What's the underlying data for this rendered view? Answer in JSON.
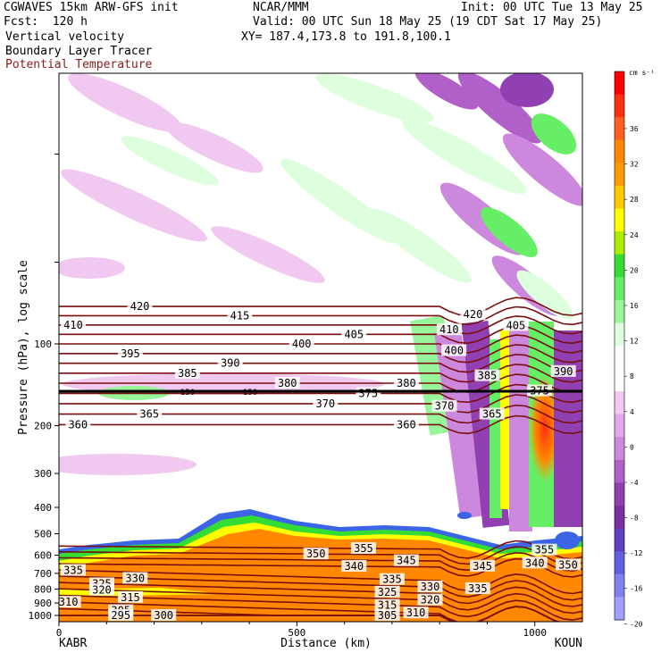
{
  "header": {
    "model": "CGWAVES 15km ARW-GFS init",
    "fcst": "Fcst:  120 h",
    "org": "NCAR/MMM",
    "init": "Init: 00 UTC Tue 13 May 25",
    "valid": "Valid: 00 UTC Sun 18 May 25 (19 CDT Sat 17 May 25)",
    "xy": "XY= 187.4,173.8 to 191.8,100.1",
    "field1": "Vertical velocity",
    "field2": "Boundary Layer Tracer",
    "field3": "Potential Temperature",
    "field3_color": "#8b1a1a"
  },
  "chart_data": {
    "type": "heatmap",
    "ylabel": "Pressure (hPa), log scale",
    "xlabel": "Distance (km)",
    "y_scale": "log",
    "yticks": [
      100,
      200,
      300,
      400,
      500,
      600,
      700,
      800,
      900,
      1000
    ],
    "xticks": [
      0,
      500,
      1000
    ],
    "x_range": [
      0,
      1100
    ],
    "left_station": "KABR",
    "right_station": "KOUN",
    "colorbar": {
      "unit": "cm s⁻¹",
      "labels": [
        36,
        32,
        28,
        24,
        20,
        16,
        12,
        8,
        4,
        0,
        -4,
        -8,
        -12,
        -16,
        -20
      ],
      "colors": [
        "#ff0000",
        "#ff3010",
        "#ff6020",
        "#ff8800",
        "#ff9a00",
        "#ffc800",
        "#ffff00",
        "#aaee00",
        "#33dd33",
        "#66ee66",
        "#99f599",
        "#ddffdd",
        "#ffffff",
        "#ffffff",
        "#f0c8f0",
        "#e0a8e8",
        "#cc88dd",
        "#b060c8",
        "#9040b0",
        "#7a30a0",
        "#6040c0",
        "#6060e0",
        "#8080f0",
        "#a0a0ff"
      ]
    },
    "tropopause_label": "150",
    "isentropes": [
      {
        "theta": 420,
        "label_x": [
          170,
          870
        ]
      },
      {
        "theta": 415,
        "label_x": [
          380
        ]
      },
      {
        "theta": 410,
        "label_x": [
          30,
          820
        ]
      },
      {
        "theta": 405,
        "label_x": [
          620,
          960
        ]
      },
      {
        "theta": 400,
        "label_x": [
          510,
          830
        ]
      },
      {
        "theta": 395,
        "label_x": [
          150
        ]
      },
      {
        "theta": 390,
        "label_x": [
          360,
          1060
        ]
      },
      {
        "theta": 385,
        "label_x": [
          270,
          900
        ]
      },
      {
        "theta": 380,
        "label_x": [
          480,
          730
        ]
      },
      {
        "theta": 375,
        "label_x": [
          650,
          1010
        ]
      },
      {
        "theta": 370,
        "label_x": [
          560,
          810
        ]
      },
      {
        "theta": 365,
        "label_x": [
          190,
          910
        ]
      },
      {
        "theta": 360,
        "label_x": [
          40,
          730
        ]
      },
      {
        "theta": 355,
        "label_x": [
          640,
          1020
        ]
      },
      {
        "theta": 350,
        "label_x": [
          540,
          1070
        ]
      },
      {
        "theta": 345,
        "label_x": [
          730,
          890
        ]
      },
      {
        "theta": 340,
        "label_x": [
          620,
          1000
        ]
      },
      {
        "theta": 335,
        "label_x": [
          30,
          700,
          880
        ]
      },
      {
        "theta": 330,
        "label_x": [
          160,
          780
        ]
      },
      {
        "theta": 325,
        "label_x": [
          90,
          690
        ]
      },
      {
        "theta": 320,
        "label_x": [
          90,
          780
        ]
      },
      {
        "theta": 315,
        "label_x": [
          150,
          690
        ]
      },
      {
        "theta": 310,
        "label_x": [
          20,
          750
        ]
      },
      {
        "theta": 305,
        "label_x": [
          130,
          690
        ]
      },
      {
        "theta": 300,
        "label_x": [
          220
        ]
      },
      {
        "theta": 295,
        "label_x": [
          130
        ]
      }
    ]
  }
}
